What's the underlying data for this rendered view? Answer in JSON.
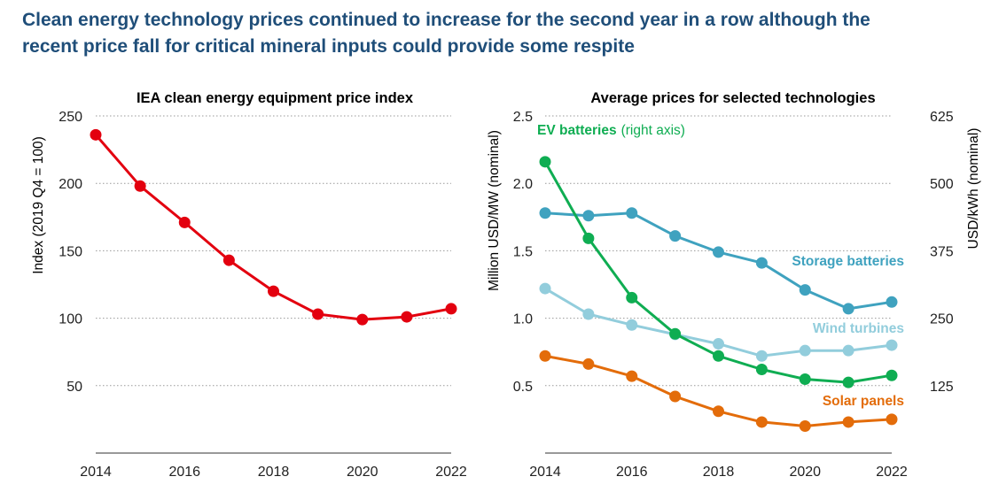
{
  "headline": {
    "line1": "Clean energy technology prices continued to increase for the second year in a row although the",
    "line2": "recent price fall for critical mineral inputs could provide some respite"
  },
  "chart_data": [
    {
      "type": "line",
      "title": "IEA clean energy equipment price index",
      "ylabel": "Index (2019 Q4 = 100)",
      "xlabel": "",
      "x": [
        2014,
        2015,
        2016,
        2017,
        2018,
        2019,
        2020,
        2021,
        2022
      ],
      "xticks": [
        "2014",
        "2016",
        "2018",
        "2020",
        "2022"
      ],
      "yticks": [
        "50",
        "100",
        "150",
        "200",
        "250"
      ],
      "ylim": [
        0,
        250
      ],
      "grid": true,
      "series": [
        {
          "name": "",
          "color": "#e3000f",
          "values": [
            236,
            198,
            171,
            143,
            120,
            103,
            99,
            101,
            107
          ]
        }
      ]
    },
    {
      "type": "line",
      "title": "Average prices for selected technologies",
      "ylabel": "Million USD/MW (nominal)",
      "ylabel_right": "USD/kWh (nominal)",
      "xlabel": "",
      "x": [
        2014,
        2015,
        2016,
        2017,
        2018,
        2019,
        2020,
        2021,
        2022
      ],
      "xticks": [
        "2014",
        "2016",
        "2018",
        "2020",
        "2022"
      ],
      "yticks": [
        "0.5",
        "1.0",
        "1.5",
        "2.0",
        "2.5"
      ],
      "yticks_right": [
        "125",
        "250",
        "375",
        "500",
        "625"
      ],
      "ylim": [
        0,
        2.5
      ],
      "ylim_right": [
        0,
        625
      ],
      "grid": true,
      "series": [
        {
          "name": "Storage batteries",
          "axis": "left",
          "color": "#3fa2bf",
          "values": [
            1.78,
            1.76,
            1.78,
            1.61,
            1.49,
            1.41,
            1.21,
            1.07,
            1.12
          ]
        },
        {
          "name": "Wind turbines",
          "axis": "left",
          "color": "#92cddc",
          "values": [
            1.22,
            1.03,
            0.95,
            0.88,
            0.81,
            0.72,
            0.76,
            0.76,
            0.8
          ]
        },
        {
          "name": "Solar panels",
          "axis": "left",
          "color": "#e36c0a",
          "values": [
            0.72,
            0.66,
            0.57,
            0.42,
            0.31,
            0.23,
            0.2,
            0.23,
            0.25
          ]
        },
        {
          "name": "EV batteries",
          "note": "(right axis)",
          "axis": "right",
          "color": "#0fad52",
          "values": [
            540,
            398,
            288,
            221,
            180,
            155,
            137,
            131,
            144
          ]
        }
      ]
    }
  ]
}
